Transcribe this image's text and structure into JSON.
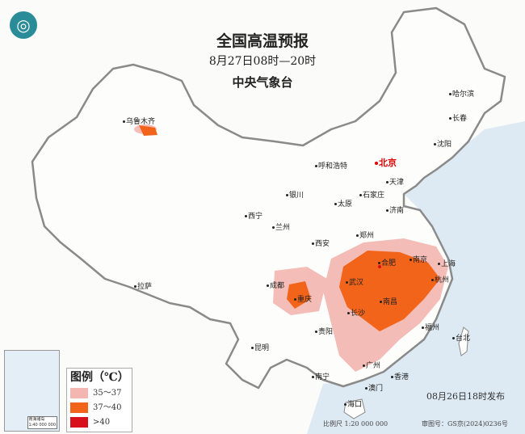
{
  "header": {
    "title": "全国高温预报",
    "time_range": "8月27日08时—20时",
    "issuer": "中央气象台"
  },
  "logo": {
    "icon": "cma-logo"
  },
  "cities": {
    "capital": "北京",
    "urumqi": "乌鲁木齐",
    "harbin": "哈尔滨",
    "changchun": "长春",
    "shenyang": "沈阳",
    "hohhot": "呼和浩特",
    "tianjin": "天津",
    "shijiazhuang": "石家庄",
    "taiyuan": "太原",
    "yinchuan": "银川",
    "xining": "西宁",
    "lanzhou": "兰州",
    "jinan": "济南",
    "zhengzhou": "郑州",
    "xian": "西安",
    "hefei": "合肥",
    "nanjing": "南京",
    "shanghai": "上海",
    "hangzhou": "杭州",
    "wuhan": "武汉",
    "chengdu": "成都",
    "chongqing": "重庆",
    "changsha": "长沙",
    "nanchang": "南昌",
    "lhasa": "拉萨",
    "guiyang": "贵阳",
    "fuzhou": "福州",
    "taipei": "台北",
    "kunming": "昆明",
    "nanning": "南宁",
    "guangzhou": "广州",
    "hongkong": "香港",
    "macau": "澳门",
    "haikou": "海口"
  },
  "legend": {
    "title": "图例（℃）",
    "items": [
      {
        "label": "35～37",
        "color": "#f4b6b0"
      },
      {
        "label": "37～40",
        "color": "#f26419"
      },
      {
        "label": ">40",
        "color": "#d8101b"
      }
    ]
  },
  "inset": {
    "label": "南海诸岛",
    "scale": "1:40 000 000"
  },
  "footer": {
    "issued": "08月26日18时发布",
    "scale": "比例尺 1:20 000 000",
    "review_number": "审图号：GS京(2024)0236号"
  },
  "colors": {
    "sea": "#dde9f3",
    "land": "#fbfbf9",
    "border": "#888888"
  }
}
